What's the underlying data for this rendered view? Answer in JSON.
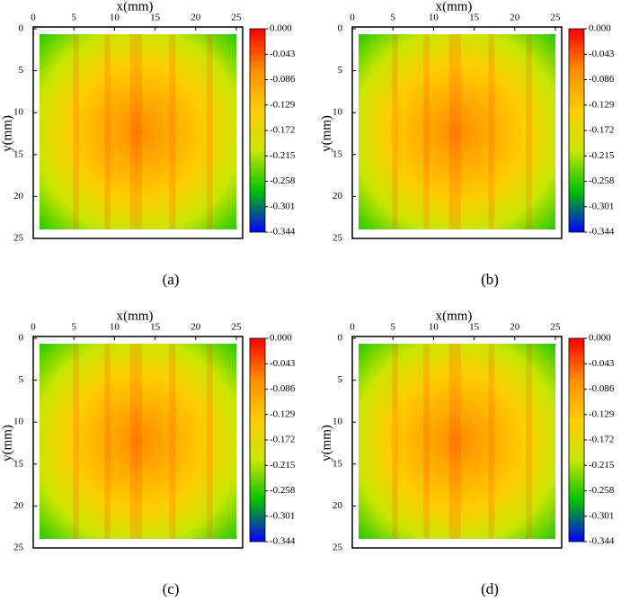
{
  "chart_data": [
    {
      "type": "heatmap",
      "xlabel": "x(mm)",
      "ylabel": "y(mm)",
      "caption": "(a)",
      "xlim": [
        0,
        25
      ],
      "xticks": [
        0,
        5,
        10,
        15,
        20,
        25
      ],
      "ylim": [
        0,
        25
      ],
      "yticks": [
        0,
        5,
        10,
        15,
        20,
        25
      ],
      "y_inverted": true,
      "clim": [
        -0.344,
        0
      ],
      "cticks": [
        {
          "value": 0,
          "label": "0.000"
        },
        -0.043,
        -0.086,
        -0.129,
        -0.172,
        -0.215,
        -0.258,
        -0.301,
        -0.344
      ],
      "colormap": [
        "#0000ff",
        "#00c000",
        "#c8e600",
        "#ffcc00",
        "#ff8c00",
        "#ff0000"
      ]
    },
    {
      "type": "heatmap",
      "xlabel": "x(mm)",
      "ylabel": "y(mm)",
      "caption": "(b)",
      "xlim": [
        0,
        25
      ],
      "xticks": [
        0,
        5,
        10,
        15,
        20,
        25
      ],
      "ylim": [
        0,
        25
      ],
      "yticks": [
        0,
        5,
        10,
        15,
        20,
        25
      ],
      "y_inverted": true,
      "clim": [
        -0.344,
        0
      ],
      "cticks": [
        {
          "value": 0,
          "label": "0.000"
        },
        -0.043,
        -0.086,
        -0.129,
        -0.172,
        -0.215,
        -0.258,
        -0.301,
        -0.344
      ],
      "colormap": [
        "#0000ff",
        "#00c000",
        "#c8e600",
        "#ffcc00",
        "#ff8c00",
        "#ff0000"
      ]
    },
    {
      "type": "heatmap",
      "xlabel": "x(mm)",
      "ylabel": "y(mm)",
      "caption": "(c)",
      "xlim": [
        0,
        25
      ],
      "xticks": [
        0,
        5,
        10,
        15,
        20,
        25
      ],
      "ylim": [
        0,
        25
      ],
      "yticks": [
        0,
        5,
        10,
        15,
        20,
        25
      ],
      "y_inverted": true,
      "clim": [
        -0.344,
        0
      ],
      "cticks": [
        {
          "value": 0,
          "label": "0.000"
        },
        -0.043,
        -0.086,
        -0.129,
        -0.172,
        -0.215,
        -0.258,
        -0.301,
        -0.344
      ],
      "colormap": [
        "#0000ff",
        "#00c000",
        "#c8e600",
        "#ffcc00",
        "#ff8c00",
        "#ff0000"
      ]
    },
    {
      "type": "heatmap",
      "xlabel": "x(mm)",
      "ylabel": "y(mm)",
      "caption": "(d)",
      "xlim": [
        0,
        25
      ],
      "xticks": [
        0,
        5,
        10,
        15,
        20,
        25
      ],
      "ylim": [
        0,
        25
      ],
      "yticks": [
        0,
        5,
        10,
        15,
        20,
        25
      ],
      "y_inverted": true,
      "clim": [
        -0.344,
        0
      ],
      "cticks": [
        {
          "value": 0,
          "label": "0.000"
        },
        -0.043,
        -0.086,
        -0.129,
        -0.172,
        -0.215,
        -0.258,
        -0.301,
        -0.344
      ],
      "colormap": [
        "#0000ff",
        "#00c000",
        "#c8e600",
        "#ffcc00",
        "#ff8c00",
        "#ff0000"
      ]
    }
  ]
}
